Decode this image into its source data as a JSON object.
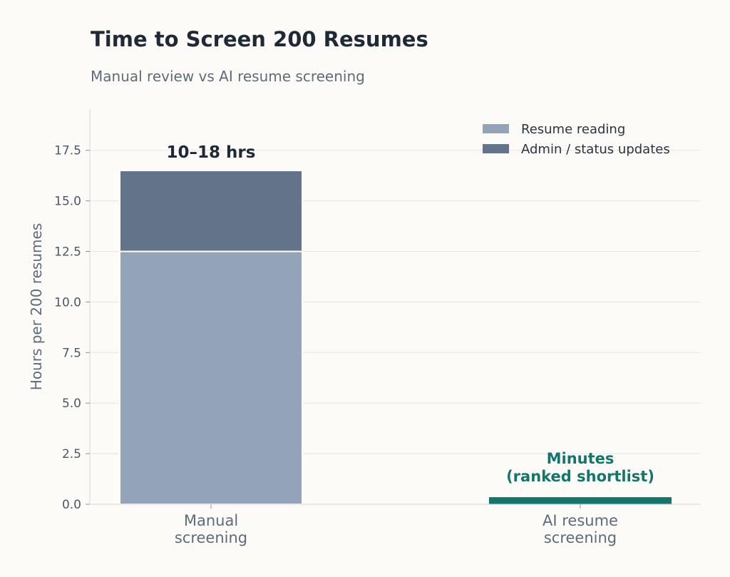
{
  "chart_data": {
    "type": "bar",
    "stacked": true,
    "title": "Time to Screen 200 Resumes",
    "subtitle": "Manual review vs AI resume screening",
    "ylabel": "Hours per 200 resumes",
    "ylim": [
      0,
      19.5
    ],
    "yticks": [
      "0.0",
      "2.5",
      "5.0",
      "7.5",
      "10.0",
      "12.5",
      "15.0",
      "17.5"
    ],
    "categories": [
      [
        "Manual",
        "screening"
      ],
      [
        "AI resume",
        "screening"
      ]
    ],
    "series": [
      {
        "name": "Resume reading",
        "color": "#93a3b8",
        "values": [
          12.5,
          0
        ]
      },
      {
        "name": "Admin / status updates",
        "color": "#637389",
        "values": [
          4.0,
          0
        ]
      }
    ],
    "ai_bar": {
      "value": 0.35,
      "color": "#13766b"
    },
    "data_labels": {
      "manual": [
        "10–18 hrs"
      ],
      "ai": [
        "Minutes",
        "(ranked shortlist)"
      ]
    },
    "grid": "horizontal",
    "legend_position": "top-right"
  }
}
